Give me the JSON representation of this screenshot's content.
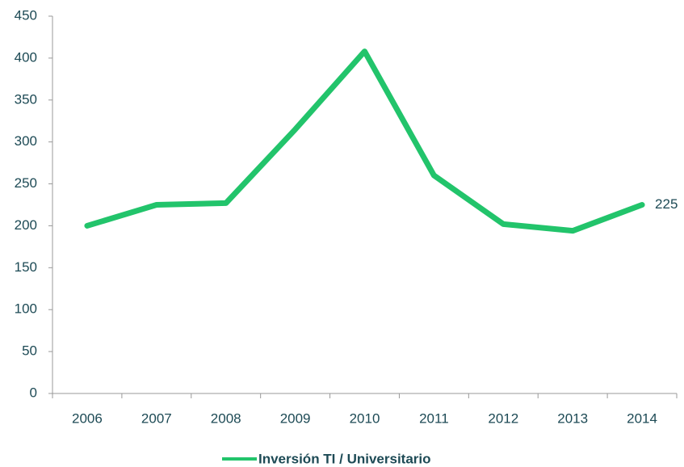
{
  "chart_data": {
    "type": "line",
    "categories": [
      "2006",
      "2007",
      "2008",
      "2009",
      "2010",
      "2011",
      "2012",
      "2013",
      "2014"
    ],
    "series": [
      {
        "name": "Inversión TI / Universitario",
        "color": "#22c46b",
        "values": [
          200,
          225,
          227,
          315,
          408,
          260,
          202,
          194,
          225
        ]
      }
    ],
    "ylim": [
      0,
      450
    ],
    "yticks": [
      0,
      50,
      100,
      150,
      200,
      250,
      300,
      350,
      400,
      450
    ],
    "grid": false,
    "legend": "bottom"
  }
}
